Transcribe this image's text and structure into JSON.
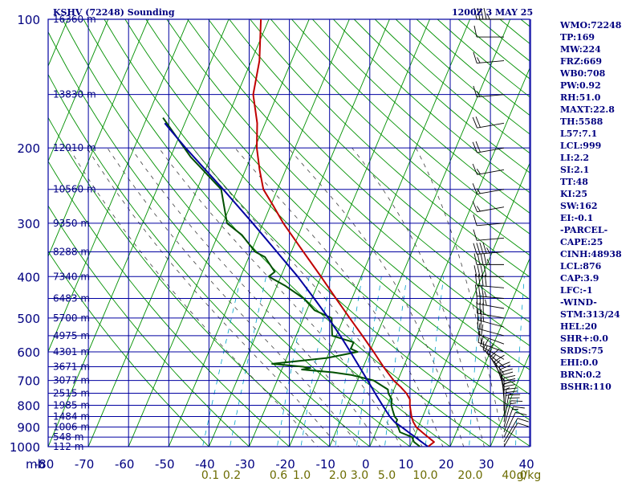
{
  "header": {
    "title": "KSHV (72248) Sounding",
    "datetime": "1200Z  3 MAY 25"
  },
  "indices": [
    "WMO:72248",
    "TP:169",
    "MW:224",
    "FRZ:669",
    "WB0:708",
    "PW:0.92",
    "RH:51.0",
    "MAXT:22.8",
    "TH:5588",
    "L57:7.1",
    "LCL:999",
    "LI:2.2",
    "SI:2.1",
    "TT:48",
    "KI:25",
    "SW:162",
    "EI:-0.1",
    "-PARCEL-",
    "CAPE:25",
    "CINH:48938",
    "LCL:876",
    "CAP:3.9",
    "LFC:-1",
    "-WIND-",
    "STM:313/24",
    "HEL:20",
    "SHR+:0.0",
    "SRDS:75",
    "EHI:0.0",
    "BRN:0.2",
    "BSHR:110"
  ],
  "colors": {
    "frame": "#0000a0",
    "axis_text": "#000080",
    "dry_adiabats": "#009000",
    "moist_adiabats": "#404040",
    "mixing_ratio": "#00a0c8",
    "temperature": "#c00000",
    "dewpoint": "#005000",
    "parcel": "#0000a0",
    "mixing_labels": "#6b6b00"
  },
  "chart_data": {
    "type": "skew-t log-p",
    "pressure_range_mb": [
      100,
      1000
    ],
    "temperature_range_c": [
      -80,
      0
    ],
    "pressure_labels": [
      100,
      200,
      300,
      400,
      500,
      600,
      700,
      800,
      900,
      1000
    ],
    "pressure_axis_unit": "mb",
    "temperature_labels": [
      -80,
      -70,
      -60,
      -50,
      -40,
      -30,
      -20,
      -10,
      0,
      10,
      20,
      30,
      40
    ],
    "temperature_label_texts": [
      "-80",
      "-70",
      "-60",
      "-50",
      "-40",
      "-30",
      "-20",
      "-10",
      "0",
      "10",
      "20",
      "30",
      "40"
    ],
    "mixing_ratio_labels": [
      "0.1",
      "0.2",
      "0.6",
      "1.0",
      "2.0",
      "3.0",
      "5.0",
      "10.0",
      "20.0",
      "40.0"
    ],
    "mixing_ratio_unit": "g/kg",
    "height_labels": [
      {
        "p": 100,
        "text": "16360 m"
      },
      {
        "p": 150,
        "text": "13830 m"
      },
      {
        "p": 200,
        "text": "12010 m"
      },
      {
        "p": 250,
        "text": "10560 m"
      },
      {
        "p": 300,
        "text": "9350 m"
      },
      {
        "p": 350,
        "text": "8288 m"
      },
      {
        "p": 400,
        "text": "7340 m"
      },
      {
        "p": 450,
        "text": "6483 m"
      },
      {
        "p": 500,
        "text": "5700 m"
      },
      {
        "p": 550,
        "text": "4975 m"
      },
      {
        "p": 600,
        "text": "4301 m"
      },
      {
        "p": 650,
        "text": "3671 m"
      },
      {
        "p": 700,
        "text": "3077 m"
      },
      {
        "p": 750,
        "text": "2515 m"
      },
      {
        "p": 800,
        "text": "1985 m"
      },
      {
        "p": 850,
        "text": "1484 m"
      },
      {
        "p": 900,
        "text": "1006 m"
      },
      {
        "p": 950,
        "text": "548 m"
      },
      {
        "p": 1000,
        "text": "112 m"
      }
    ],
    "series": [
      {
        "key": "temperature",
        "points": [
          [
            1000,
            14.5
          ],
          [
            975,
            15.5
          ],
          [
            950,
            13.5
          ],
          [
            925,
            11.5
          ],
          [
            900,
            9.5
          ],
          [
            875,
            8.2
          ],
          [
            850,
            7.2
          ],
          [
            800,
            5.6
          ],
          [
            775,
            5.0
          ],
          [
            750,
            3.5
          ],
          [
            725,
            1.4
          ],
          [
            700,
            -1.0
          ],
          [
            675,
            -3.0
          ],
          [
            650,
            -5.0
          ],
          [
            600,
            -9.0
          ],
          [
            550,
            -13.5
          ],
          [
            500,
            -18.5
          ],
          [
            450,
            -24.0
          ],
          [
            400,
            -30.0
          ],
          [
            350,
            -37.0
          ],
          [
            300,
            -45.0
          ],
          [
            275,
            -49.0
          ],
          [
            250,
            -53.5
          ],
          [
            225,
            -56.5
          ],
          [
            200,
            -59.5
          ],
          [
            175,
            -62.0
          ],
          [
            150,
            -66.0
          ],
          [
            125,
            -68.0
          ],
          [
            100,
            -72.0
          ]
        ]
      },
      {
        "key": "dewpoint",
        "points": [
          [
            1000,
            12.5
          ],
          [
            975,
            10.5
          ],
          [
            950,
            9.5
          ],
          [
            925,
            6.0
          ],
          [
            900,
            5.0
          ],
          [
            880,
            4.0
          ],
          [
            865,
            4.0
          ],
          [
            850,
            3.0
          ],
          [
            825,
            2.0
          ],
          [
            800,
            1.0
          ],
          [
            775,
            0.5
          ],
          [
            750,
            -1.0
          ],
          [
            735,
            -1.5
          ],
          [
            700,
            -6.0
          ],
          [
            680,
            -12.0
          ],
          [
            670,
            -17.0
          ],
          [
            660,
            -25.0
          ],
          [
            655,
            -23.0
          ],
          [
            650,
            -25.0
          ],
          [
            640,
            -33.0
          ],
          [
            620,
            -20.0
          ],
          [
            600,
            -13.0
          ],
          [
            590,
            -15.0
          ],
          [
            580,
            -15.0
          ],
          [
            570,
            -15.0
          ],
          [
            550,
            -21.0
          ],
          [
            525,
            -22.0
          ],
          [
            500,
            -23.0
          ],
          [
            480,
            -28.0
          ],
          [
            450,
            -32.0
          ],
          [
            420,
            -38.0
          ],
          [
            400,
            -43.0
          ],
          [
            390,
            -42.0
          ],
          [
            360,
            -46.0
          ],
          [
            350,
            -49.0
          ],
          [
            320,
            -54.0
          ],
          [
            300,
            -59.0
          ],
          [
            250,
            -64.0
          ],
          [
            210,
            -75.0
          ],
          [
            170,
            -86.0
          ]
        ]
      },
      {
        "key": "parcel",
        "points": [
          [
            1000,
            14.5
          ],
          [
            975,
            12.4
          ],
          [
            950,
            10.3
          ],
          [
            925,
            8.1
          ],
          [
            900,
            5.9
          ],
          [
            876,
            3.6
          ],
          [
            850,
            1.8
          ],
          [
            800,
            -1.2
          ],
          [
            750,
            -4.3
          ],
          [
            700,
            -7.5
          ],
          [
            650,
            -11.0
          ],
          [
            600,
            -14.8
          ],
          [
            550,
            -19.0
          ],
          [
            500,
            -23.8
          ],
          [
            450,
            -29.4
          ],
          [
            400,
            -35.8
          ],
          [
            350,
            -43.6
          ],
          [
            300,
            -52.6
          ],
          [
            250,
            -63.5
          ],
          [
            200,
            -77.2
          ],
          [
            175,
            -85.0
          ]
        ]
      }
    ],
    "wind_barbs": [
      {
        "p": 100,
        "dir": 270,
        "spd": 45
      },
      {
        "p": 110,
        "dir": 270,
        "spd": 50
      },
      {
        "p": 125,
        "dir": 265,
        "spd": 55
      },
      {
        "p": 150,
        "dir": 265,
        "spd": 55
      },
      {
        "p": 175,
        "dir": 260,
        "spd": 60
      },
      {
        "p": 200,
        "dir": 260,
        "spd": 60
      },
      {
        "p": 225,
        "dir": 260,
        "spd": 55
      },
      {
        "p": 250,
        "dir": 260,
        "spd": 55
      },
      {
        "p": 275,
        "dir": 260,
        "spd": 55
      },
      {
        "p": 300,
        "dir": 265,
        "spd": 50
      },
      {
        "p": 325,
        "dir": 265,
        "spd": 50
      },
      {
        "p": 350,
        "dir": 265,
        "spd": 45
      },
      {
        "p": 375,
        "dir": 270,
        "spd": 45
      },
      {
        "p": 400,
        "dir": 270,
        "spd": 40
      },
      {
        "p": 425,
        "dir": 275,
        "spd": 40
      },
      {
        "p": 450,
        "dir": 275,
        "spd": 35
      },
      {
        "p": 475,
        "dir": 280,
        "spd": 35
      },
      {
        "p": 500,
        "dir": 280,
        "spd": 30
      },
      {
        "p": 525,
        "dir": 285,
        "spd": 25
      },
      {
        "p": 550,
        "dir": 285,
        "spd": 20
      },
      {
        "p": 575,
        "dir": 290,
        "spd": 20
      },
      {
        "p": 600,
        "dir": 290,
        "spd": 15
      },
      {
        "p": 625,
        "dir": 300,
        "spd": 15
      },
      {
        "p": 650,
        "dir": 310,
        "spd": 15
      },
      {
        "p": 675,
        "dir": 320,
        "spd": 15
      },
      {
        "p": 700,
        "dir": 330,
        "spd": 15
      },
      {
        "p": 725,
        "dir": 340,
        "spd": 15
      },
      {
        "p": 750,
        "dir": 350,
        "spd": 20
      },
      {
        "p": 775,
        "dir": 355,
        "spd": 20
      },
      {
        "p": 800,
        "dir": 0,
        "spd": 25
      },
      {
        "p": 825,
        "dir": 0,
        "spd": 25
      },
      {
        "p": 850,
        "dir": 5,
        "spd": 25
      },
      {
        "p": 875,
        "dir": 10,
        "spd": 20
      },
      {
        "p": 900,
        "dir": 15,
        "spd": 15
      },
      {
        "p": 925,
        "dir": 20,
        "spd": 15
      },
      {
        "p": 950,
        "dir": 25,
        "spd": 10
      },
      {
        "p": 975,
        "dir": 30,
        "spd": 10
      },
      {
        "p": 1000,
        "dir": 30,
        "spd": 10
      }
    ]
  }
}
